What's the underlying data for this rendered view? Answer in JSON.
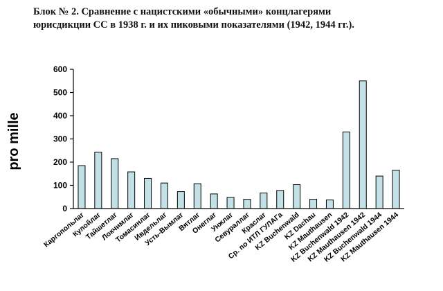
{
  "title": {
    "line1": "Блок № 2. Сравнение с нацистскими «обычными» концлагерями",
    "line2": "юрисдикции СС в 1938 г. и их пиковыми показателями (1942, 1944 гг.)."
  },
  "chart_data": {
    "type": "bar",
    "ylabel": "pro mille",
    "ylim": [
      0,
      600
    ],
    "yticks": [
      0,
      100,
      200,
      300,
      400,
      500,
      600
    ],
    "grid": false,
    "bar_color": "#c2e1e6",
    "categories": [
      "Каргопольлаг",
      "Кулойлаг",
      "Тайшетлаг",
      "Локчимлаг",
      "Томасинлаг",
      "Ивдельлаг",
      "Усть-Вымлаг",
      "Вятлаг",
      "Онеглаг",
      "Унжлаг",
      "Севураллаг",
      "Краслаг",
      "Ср. по ИТЛ ГУЛАГа",
      "KZ Buchenwald",
      "KZ Dachau",
      "KZ Mauthausen",
      "KZ Buchenwald 1942",
      "KZ Mauthausen 1942",
      "KZ Buchenwald 1944",
      "KZ Mauthausen 1944"
    ],
    "values": [
      185,
      243,
      215,
      158,
      130,
      110,
      73,
      107,
      63,
      48,
      40,
      67,
      78,
      103,
      40,
      37,
      330,
      550,
      140,
      165
    ]
  }
}
